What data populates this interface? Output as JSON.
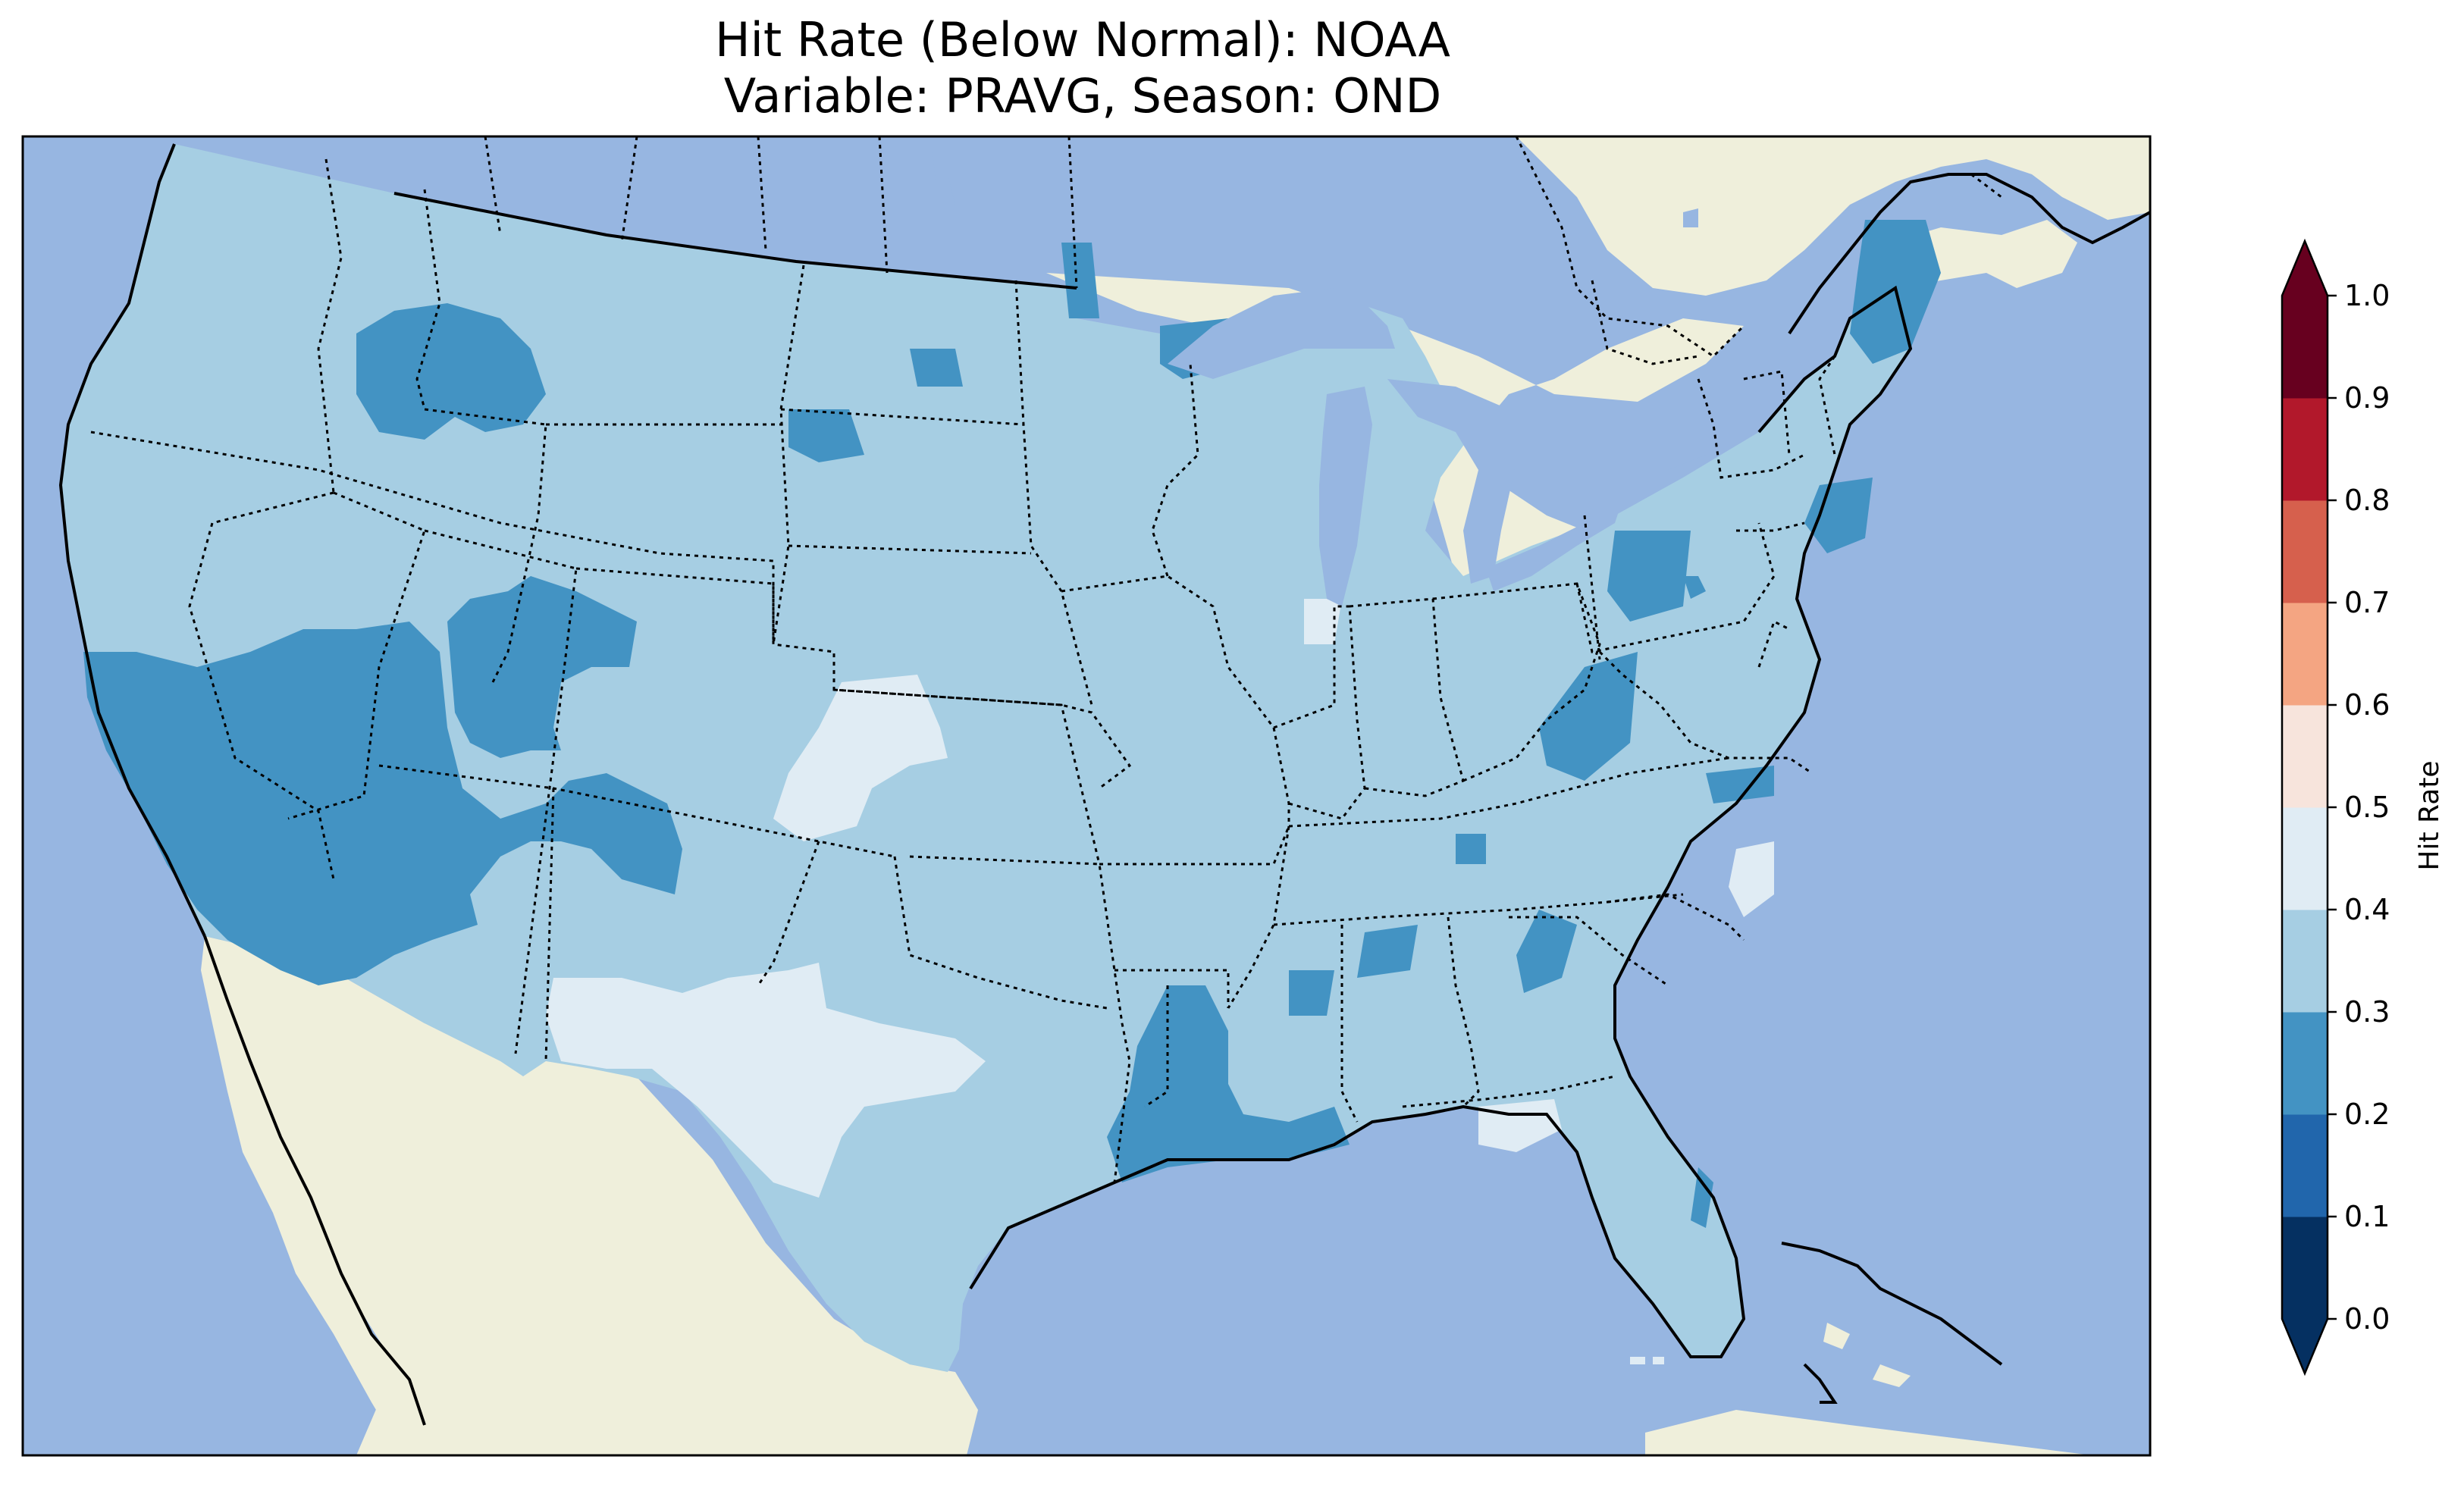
{
  "title_line1": "Hit Rate (Below Normal): NOAA",
  "title_line2": "Variable: PRAVG, Season: OND",
  "colorbar": {
    "label": "Hit Rate",
    "ticks": [
      "0.0",
      "0.1",
      "0.2",
      "0.3",
      "0.4",
      "0.5",
      "0.6",
      "0.7",
      "0.8",
      "0.9",
      "1.0"
    ],
    "bins": [
      {
        "range": [
          0.0,
          0.1
        ],
        "color": "#053061"
      },
      {
        "range": [
          0.1,
          0.2
        ],
        "color": "#2166ac"
      },
      {
        "range": [
          0.2,
          0.3
        ],
        "color": "#4393c3"
      },
      {
        "range": [
          0.3,
          0.4
        ],
        "color": "#a6cee3"
      },
      {
        "range": [
          0.4,
          0.5
        ],
        "color": "#e0ecf4"
      },
      {
        "range": [
          0.5,
          0.6
        ],
        "color": "#f7e4dc"
      },
      {
        "range": [
          0.6,
          0.7
        ],
        "color": "#f4a582"
      },
      {
        "range": [
          0.7,
          0.8
        ],
        "color": "#d6604d"
      },
      {
        "range": [
          0.8,
          0.9
        ],
        "color": "#b2182b"
      },
      {
        "range": [
          0.9,
          1.0
        ],
        "color": "#67001f"
      }
    ],
    "extend": "both"
  },
  "map": {
    "ocean_color": "#97b6e1",
    "land_color": "#efefdb",
    "lake_color": "#97b6e1",
    "region": "Contiguous United States",
    "dominant_value_range": [
      0.3,
      0.4
    ],
    "lower_value_range": [
      0.2,
      0.3
    ],
    "higher_value_range": [
      0.4,
      0.5
    ]
  }
}
